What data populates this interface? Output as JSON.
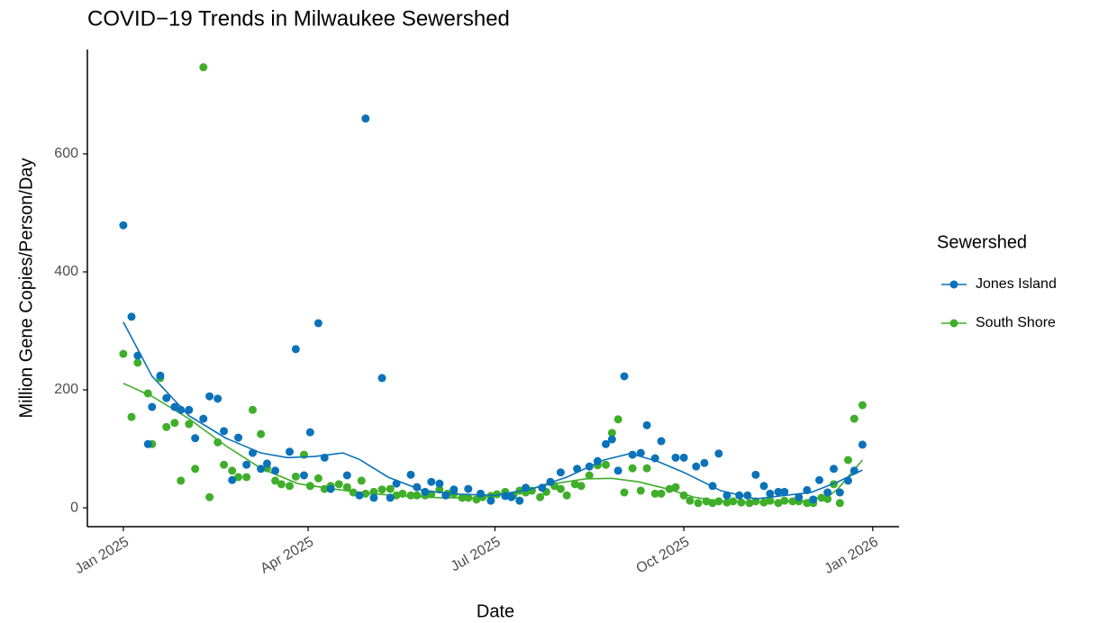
{
  "chart_data": {
    "type": "scatter",
    "title": "COVID−19 Trends in Milwaukee Sewershed",
    "x_label": "Date",
    "y_label": "Million Gene Copies/Person/Day",
    "legend_title": "Sewershed",
    "legend": "right",
    "grid": false,
    "xlim": [
      -17.5,
      377.8
    ],
    "xticks": [
      {
        "value": 0,
        "label": "Jan 2025"
      },
      {
        "value": 90,
        "label": "Apr 2025"
      },
      {
        "value": 181,
        "label": "Jul 2025"
      },
      {
        "value": 273,
        "label": "Oct 2025"
      },
      {
        "value": 365,
        "label": "Jan 2026"
      }
    ],
    "ylim": [
      -32,
      777
    ],
    "yticks": [
      0,
      200,
      400,
      600
    ],
    "series": [
      {
        "name": "Jones Island",
        "color": "#0b72b9",
        "x": [
          0,
          4,
          7,
          12,
          14,
          18,
          21,
          25,
          28,
          32,
          35,
          39,
          42,
          46,
          49,
          53,
          56,
          60,
          63,
          67,
          70,
          74,
          81,
          84,
          88,
          91,
          95,
          98,
          101,
          109,
          115,
          118,
          122,
          126,
          130,
          133,
          140,
          143,
          147,
          150,
          154,
          157,
          161,
          168,
          174,
          179,
          186,
          189,
          193,
          196,
          204,
          208,
          213,
          221,
          227,
          231,
          235,
          238,
          241,
          244,
          248,
          252,
          255,
          259,
          262,
          269,
          273,
          279,
          283,
          287,
          290,
          294,
          300,
          304,
          308,
          312,
          315,
          319,
          322,
          329,
          333,
          336,
          339,
          343,
          346,
          349,
          353,
          356,
          360
        ],
        "values": [
          479,
          324,
          258,
          108,
          171,
          224,
          186,
          171,
          166,
          166,
          118,
          151,
          189,
          185,
          130,
          47,
          119,
          73,
          93,
          66,
          75,
          63,
          95,
          269,
          55,
          128,
          313,
          85,
          32,
          55,
          21,
          660,
          17,
          220,
          17,
          41,
          56,
          35,
          27,
          44,
          41,
          21,
          31,
          32,
          24,
          12,
          20,
          18,
          12,
          34,
          34,
          44,
          60,
          66,
          70,
          79,
          108,
          116,
          63,
          223,
          90,
          93,
          140,
          84,
          113,
          85,
          85,
          70,
          76,
          37,
          92,
          21,
          21,
          21,
          56,
          37,
          24,
          27,
          27,
          18,
          30,
          14,
          47,
          26,
          66,
          26,
          46,
          63,
          107
        ],
        "trend": {
          "x": [
            0,
            14,
            32,
            50,
            67,
            80,
            93,
            107,
            115,
            129,
            146,
            164,
            181,
            199,
            216,
            234,
            247,
            260,
            273,
            291,
            308,
            322,
            335,
            348,
            360
          ],
          "values": [
            315,
            223,
            156,
            118,
            93,
            85,
            87,
            93,
            82,
            52,
            29,
            23,
            21,
            32,
            52,
            81,
            92,
            79,
            60,
            29,
            15,
            21,
            26,
            44,
            64
          ]
        }
      },
      {
        "name": "South Shore",
        "color": "#3fae2a",
        "x": [
          0,
          4,
          7,
          12,
          14,
          18,
          21,
          25,
          28,
          32,
          35,
          39,
          42,
          46,
          49,
          53,
          56,
          60,
          63,
          67,
          70,
          74,
          77,
          81,
          84,
          88,
          91,
          95,
          98,
          101,
          105,
          109,
          112,
          116,
          118,
          122,
          126,
          130,
          133,
          136,
          140,
          143,
          147,
          150,
          154,
          158,
          161,
          165,
          168,
          172,
          175,
          179,
          182,
          186,
          190,
          193,
          196,
          199,
          203,
          206,
          210,
          213,
          216,
          220,
          223,
          227,
          231,
          235,
          238,
          241,
          244,
          248,
          252,
          255,
          259,
          262,
          266,
          269,
          273,
          276,
          280,
          284,
          287,
          290,
          294,
          297,
          301,
          305,
          308,
          312,
          315,
          319,
          322,
          326,
          329,
          333,
          336,
          340,
          343,
          346,
          349,
          353,
          356,
          360
        ],
        "values": [
          261,
          154,
          246,
          194,
          108,
          220,
          137,
          144,
          46,
          142,
          66,
          747,
          18,
          111,
          73,
          63,
          52,
          52,
          166,
          125,
          67,
          46,
          40,
          37,
          53,
          90,
          37,
          50,
          32,
          37,
          40,
          35,
          26,
          46,
          24,
          27,
          31,
          32,
          21,
          24,
          21,
          21,
          21,
          23,
          31,
          24,
          24,
          17,
          17,
          14,
          18,
          20,
          23,
          27,
          21,
          29,
          26,
          29,
          18,
          27,
          37,
          32,
          21,
          40,
          37,
          55,
          72,
          73,
          127,
          150,
          26,
          67,
          29,
          67,
          24,
          24,
          32,
          35,
          21,
          12,
          8,
          11,
          8,
          11,
          9,
          11,
          9,
          8,
          11,
          9,
          12,
          8,
          12,
          11,
          11,
          8,
          8,
          17,
          15,
          40,
          8,
          81,
          151,
          174
        ],
        "trend": {
          "x": [
            0,
            14,
            32,
            50,
            67,
            85,
            102,
            120,
            137,
            155,
            172,
            190,
            208,
            225,
            238,
            251,
            265,
            278,
            291,
            304,
            317,
            330,
            344,
            348,
            360
          ],
          "values": [
            211,
            189,
            151,
            105,
            67,
            41,
            32,
            24,
            20,
            17,
            17,
            26,
            40,
            49,
            50,
            44,
            32,
            18,
            11,
            9,
            9,
            11,
            21,
            32,
            81
          ]
        }
      }
    ]
  }
}
